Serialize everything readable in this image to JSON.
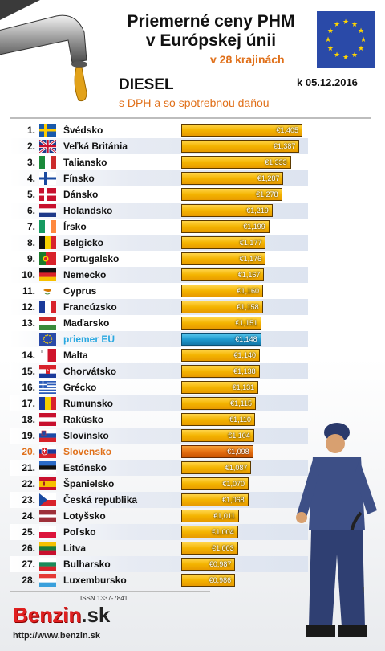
{
  "header": {
    "title_line1": "Priemerné ceny PHM",
    "title_line2": "v Európskej únii",
    "countries_note": "v 28 krajinách",
    "fuel": "DIESEL",
    "date": "k 05.12.2016",
    "tax_note": "s DPH a so spotrebnou daňou"
  },
  "footer": {
    "issn": "ISSN 1337-7841",
    "logo_main": "Benzin",
    "logo_tld": ".sk",
    "url": "http://www.benzin.sk"
  },
  "colors": {
    "bar": "#f4b400",
    "eu_bar": "#1f9bd0",
    "slovakia_bar": "#e67012",
    "eu_text": "#2aa8e0",
    "accent": "#e0701a"
  },
  "chart_data": {
    "type": "bar",
    "orientation": "horizontal",
    "xlim": [
      0.65,
      1.45
    ],
    "rows": [
      {
        "rank": "1.",
        "country": "Švédsko",
        "value": 1.405,
        "label": "€1,405",
        "flag": "se"
      },
      {
        "rank": "2.",
        "country": "Veľká Británia",
        "value": 1.387,
        "label": "€1,387",
        "flag": "gb"
      },
      {
        "rank": "3.",
        "country": "Taliansko",
        "value": 1.333,
        "label": "€1,333",
        "flag": "it"
      },
      {
        "rank": "4.",
        "country": "Fínsko",
        "value": 1.287,
        "label": "€1,287",
        "flag": "fi"
      },
      {
        "rank": "5.",
        "country": "Dánsko",
        "value": 1.278,
        "label": "€1,278",
        "flag": "dk"
      },
      {
        "rank": "6.",
        "country": "Holandsko",
        "value": 1.219,
        "label": "€1,219",
        "flag": "nl"
      },
      {
        "rank": "7.",
        "country": "Írsko",
        "value": 1.199,
        "label": "€1,199",
        "flag": "ie"
      },
      {
        "rank": "8.",
        "country": "Belgicko",
        "value": 1.177,
        "label": "€1,177",
        "flag": "be"
      },
      {
        "rank": "9.",
        "country": "Portugalsko",
        "value": 1.176,
        "label": "€1,176",
        "flag": "pt"
      },
      {
        "rank": "10.",
        "country": "Nemecko",
        "value": 1.167,
        "label": "€1,167",
        "flag": "de"
      },
      {
        "rank": "11.",
        "country": "Cyprus",
        "value": 1.16,
        "label": "€1,160",
        "flag": "cy"
      },
      {
        "rank": "12.",
        "country": "Francúzsko",
        "value": 1.158,
        "label": "€1,158",
        "flag": "fr"
      },
      {
        "rank": "13.",
        "country": "Maďarsko",
        "value": 1.151,
        "label": "€1,151",
        "flag": "hu"
      },
      {
        "rank": "",
        "country": "priemer EÚ",
        "value": 1.148,
        "label": "€1,148",
        "flag": "eu",
        "kind": "eu"
      },
      {
        "rank": "14.",
        "country": "Malta",
        "value": 1.14,
        "label": "€1,140",
        "flag": "mt"
      },
      {
        "rank": "15.",
        "country": "Chorvátsko",
        "value": 1.138,
        "label": "€1,138",
        "flag": "hr"
      },
      {
        "rank": "16.",
        "country": "Grécko",
        "value": 1.131,
        "label": "€1,131",
        "flag": "gr"
      },
      {
        "rank": "17.",
        "country": "Rumunsko",
        "value": 1.115,
        "label": "€1,115",
        "flag": "ro"
      },
      {
        "rank": "18.",
        "country": "Rakúsko",
        "value": 1.11,
        "label": "€1,110",
        "flag": "at"
      },
      {
        "rank": "19.",
        "country": "Slovinsko",
        "value": 1.104,
        "label": "€1,104",
        "flag": "si"
      },
      {
        "rank": "20.",
        "country": "Slovensko",
        "value": 1.098,
        "label": "€1,098",
        "flag": "sk",
        "kind": "sk"
      },
      {
        "rank": "21.",
        "country": "Estónsko",
        "value": 1.087,
        "label": "€1,087",
        "flag": "ee"
      },
      {
        "rank": "22.",
        "country": "Španielsko",
        "value": 1.07,
        "label": "€1,070",
        "flag": "es"
      },
      {
        "rank": "23.",
        "country": "Česká republika",
        "value": 1.068,
        "label": "€1,068",
        "flag": "cz"
      },
      {
        "rank": "24.",
        "country": "Lotyšsko",
        "value": 1.011,
        "label": "€1,011",
        "flag": "lv"
      },
      {
        "rank": "25.",
        "country": "Poľsko",
        "value": 1.004,
        "label": "€1,004",
        "flag": "pl"
      },
      {
        "rank": "26.",
        "country": "Litva",
        "value": 1.003,
        "label": "€1,003",
        "flag": "lt"
      },
      {
        "rank": "27.",
        "country": "Bulharsko",
        "value": 0.987,
        "label": "€0,987",
        "flag": "bg"
      },
      {
        "rank": "28.",
        "country": "Luxembursko",
        "value": 0.986,
        "label": "€0,986",
        "flag": "lu"
      }
    ]
  }
}
